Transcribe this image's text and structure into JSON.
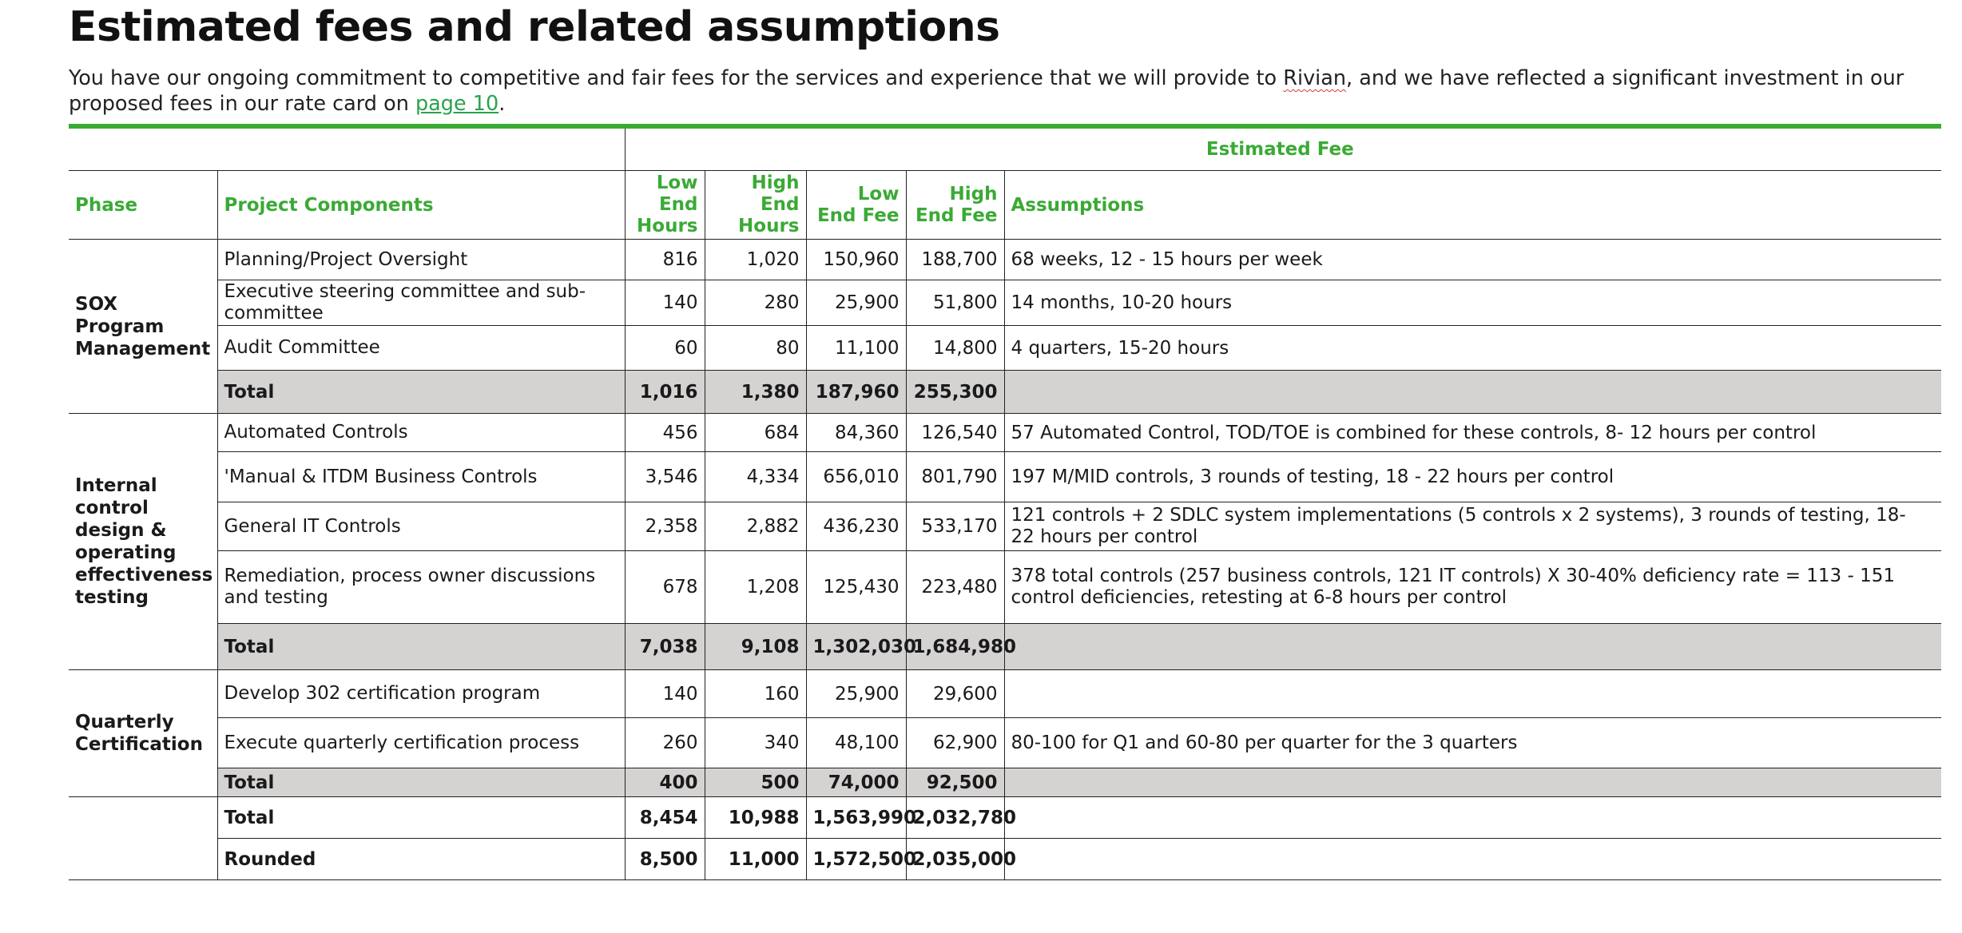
{
  "title": "Estimated fees and related assumptions",
  "intro": {
    "part1": "You have our ongoing commitment to competitive and fair fees for the services and experience that we will provide to ",
    "client": "Rivian",
    "part2": ", and we have reflected a significant investment in our proposed fees in our rate card on ",
    "link": "page 10",
    "part3": "."
  },
  "table": {
    "group_header": "Estimated Fee",
    "headers": {
      "phase": "Phase",
      "components": "Project Components",
      "low_hours": "Low End Hours",
      "high_hours": "High End Hours",
      "low_fee": "Low End Fee",
      "high_fee": "High End Fee",
      "assumptions": "Assumptions"
    },
    "sections": [
      {
        "phase": "SOX Program Management",
        "rows": [
          {
            "component": "Planning/Project Oversight",
            "low_hours": "816",
            "high_hours": "1,020",
            "low_fee": "150,960",
            "high_fee": "188,700",
            "assumptions": "68 weeks, 12 - 15 hours per week"
          },
          {
            "component": "Executive steering committee and sub-committee",
            "low_hours": "140",
            "high_hours": "280",
            "low_fee": "25,900",
            "high_fee": "51,800",
            "assumptions": "14 months, 10-20 hours"
          },
          {
            "component": "Audit Committee",
            "low_hours": "60",
            "high_hours": "80",
            "low_fee": "11,100",
            "high_fee": "14,800",
            "assumptions": "4 quarters, 15-20 hours"
          }
        ],
        "total": {
          "label": "Total",
          "low_hours": "1,016",
          "high_hours": "1,380",
          "low_fee": "187,960",
          "high_fee": "255,300"
        }
      },
      {
        "phase": "Internal control design & operating effectiveness testing",
        "rows": [
          {
            "component": "Automated Controls",
            "low_hours": "456",
            "high_hours": "684",
            "low_fee": "84,360",
            "high_fee": "126,540",
            "assumptions": "57 Automated Control, TOD/TOE is combined for these controls, 8- 12 hours per control"
          },
          {
            "component": "'Manual & ITDM Business Controls",
            "low_hours": "3,546",
            "high_hours": "4,334",
            "low_fee": "656,010",
            "high_fee": "801,790",
            "assumptions": "197 M/MID controls, 3 rounds of testing, 18 - 22 hours per control"
          },
          {
            "component": "General IT Controls",
            "low_hours": "2,358",
            "high_hours": "2,882",
            "low_fee": "436,230",
            "high_fee": "533,170",
            "assumptions": "121 controls + 2 SDLC system implementations (5 controls x 2 systems), 3 rounds of testing, 18- 22 hours per control"
          },
          {
            "component": "Remediation, process owner discussions and testing",
            "low_hours": "678",
            "high_hours": "1,208",
            "low_fee": "125,430",
            "high_fee": "223,480",
            "assumptions": "378 total controls (257 business controls, 121 IT controls) X 30-40% deficiency rate = 113 - 151 control deficiencies, retesting at 6-8 hours per control"
          }
        ],
        "total": {
          "label": "Total",
          "low_hours": "7,038",
          "high_hours": "9,108",
          "low_fee": "1,302,030",
          "high_fee": "1,684,980"
        }
      },
      {
        "phase": "Quarterly Certification",
        "rows": [
          {
            "component": "Develop 302 certification program",
            "low_hours": "140",
            "high_hours": "160",
            "low_fee": "25,900",
            "high_fee": "29,600",
            "assumptions": ""
          },
          {
            "component": "Execute quarterly certification process",
            "low_hours": "260",
            "high_hours": "340",
            "low_fee": "48,100",
            "high_fee": "62,900",
            "assumptions": "80-100 for Q1 and 60-80 per quarter for the 3 quarters"
          }
        ],
        "total": {
          "label": "Total",
          "low_hours": "400",
          "high_hours": "500",
          "low_fee": "74,000",
          "high_fee": "92,500"
        }
      }
    ],
    "grand_total": {
      "label": "Total",
      "low_hours": "8,454",
      "high_hours": "10,988",
      "low_fee": "1,563,990",
      "high_fee": "2,032,780"
    },
    "rounded": {
      "label": "Rounded",
      "low_hours": "8,500",
      "high_hours": "11,000",
      "low_fee": "1,572,500",
      "high_fee": "2,035,000"
    }
  },
  "colors": {
    "accent": "#3aaa35",
    "total_fill": "#d5d2d2"
  }
}
